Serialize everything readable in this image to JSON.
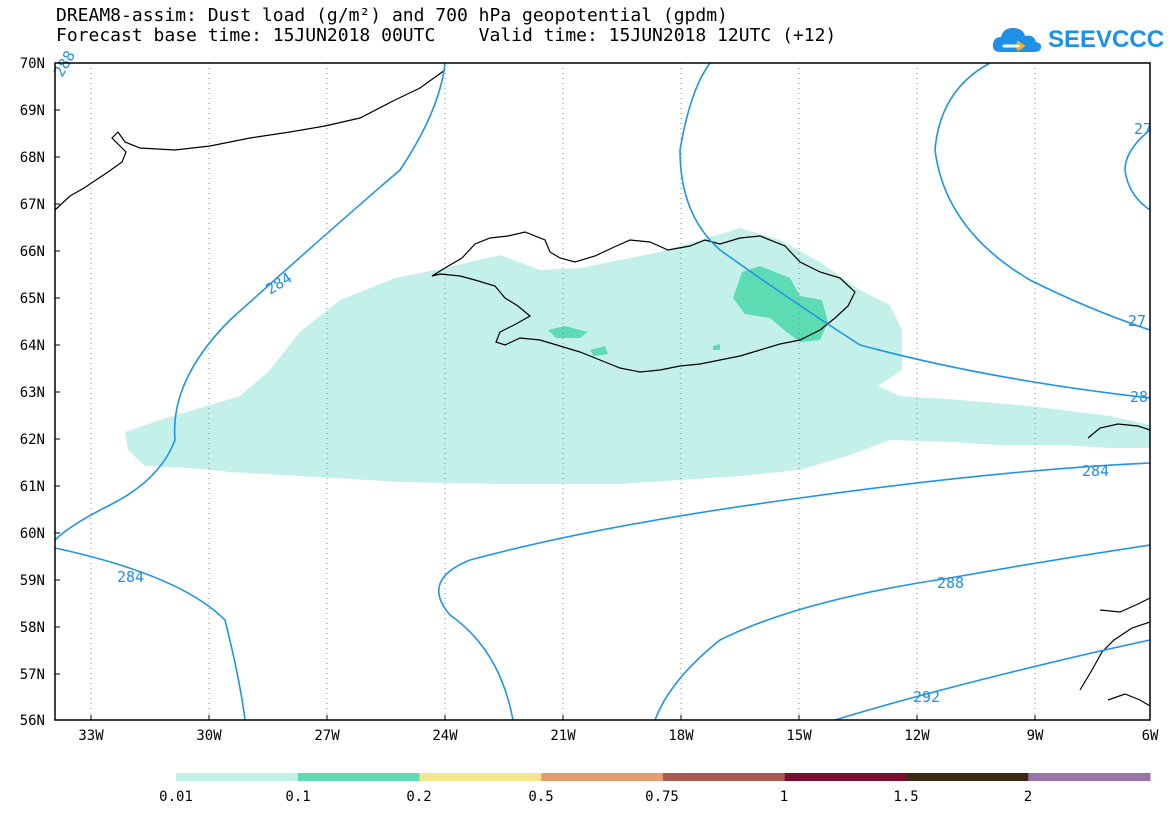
{
  "title": {
    "line1": "DREAM8-assim: Dust load (g/m²) and 700 hPa geopotential (gpdm)",
    "line2": "Forecast base time: 15JUN2018 00UTC    Valid time: 15JUN2018 12UTC (+12)"
  },
  "logo": {
    "text": "SEEVCCC"
  },
  "map": {
    "lat_labels": [
      "70N",
      "69N",
      "68N",
      "67N",
      "66N",
      "65N",
      "64N",
      "63N",
      "62N",
      "61N",
      "60N",
      "59N",
      "58N",
      "57N",
      "56N"
    ],
    "lon_labels": [
      "33W",
      "30W",
      "27W",
      "24W",
      "21W",
      "18W",
      "15W",
      "12W",
      "9W",
      "6W"
    ],
    "contour_labels": [
      "288",
      "284",
      "27",
      "27",
      "28",
      "284",
      "284",
      "288",
      "292"
    ]
  },
  "legend": {
    "ticks": [
      "0.01",
      "0.1",
      "0.2",
      "0.5",
      "0.75",
      "1",
      "1.5",
      "2"
    ],
    "colors": [
      "#c4f0ea",
      "#5ddcb4",
      "#f4e68c",
      "#e89970",
      "#a9584e",
      "#7c0f2f",
      "#3d2814",
      "#9a74a8"
    ]
  }
}
